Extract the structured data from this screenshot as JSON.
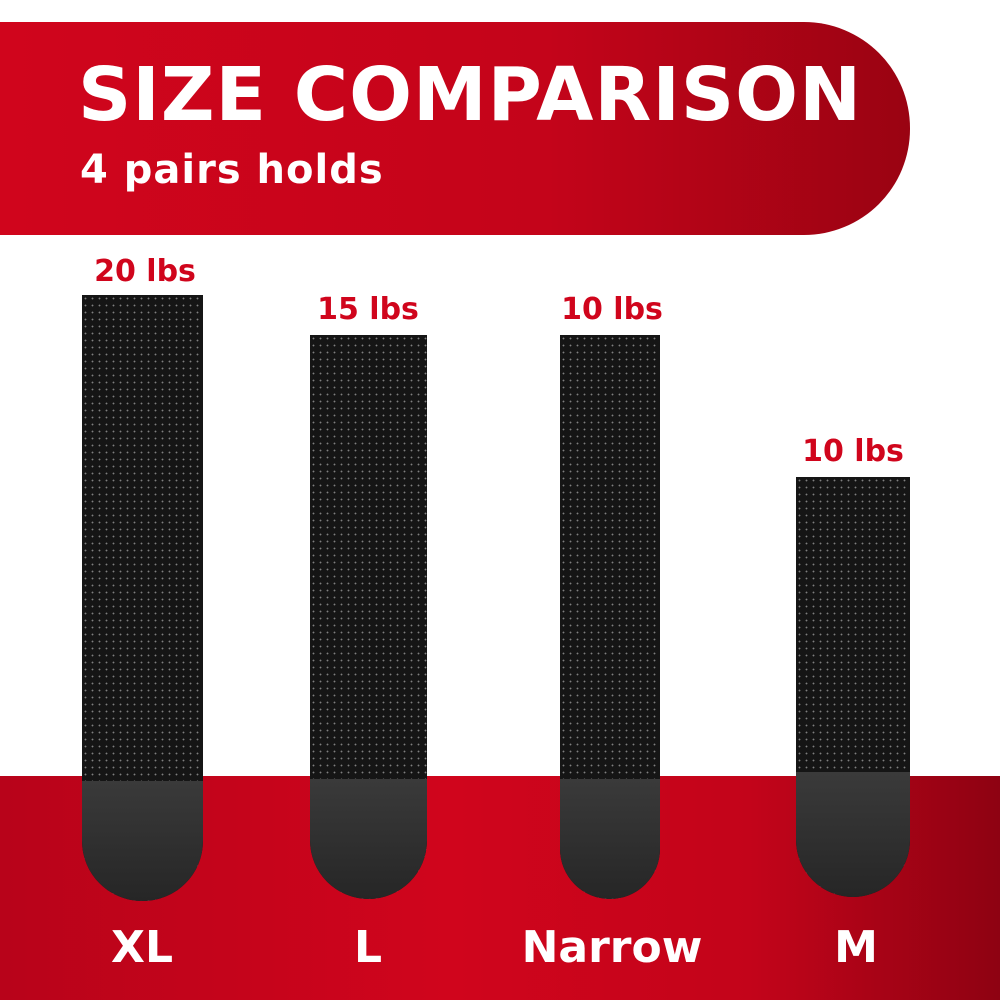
{
  "header": {
    "title": "SIZE COMPARISON",
    "subtitle": "4 pairs holds"
  },
  "colors": {
    "brand_red": "#d0051c",
    "strip": "#151515",
    "background": "#ffffff"
  },
  "strips": [
    {
      "size": "XL",
      "weight": "20 lbs"
    },
    {
      "size": "L",
      "weight": "15 lbs"
    },
    {
      "size": "Narrow",
      "weight": "10 lbs"
    },
    {
      "size": "M",
      "weight": "10 lbs"
    }
  ]
}
